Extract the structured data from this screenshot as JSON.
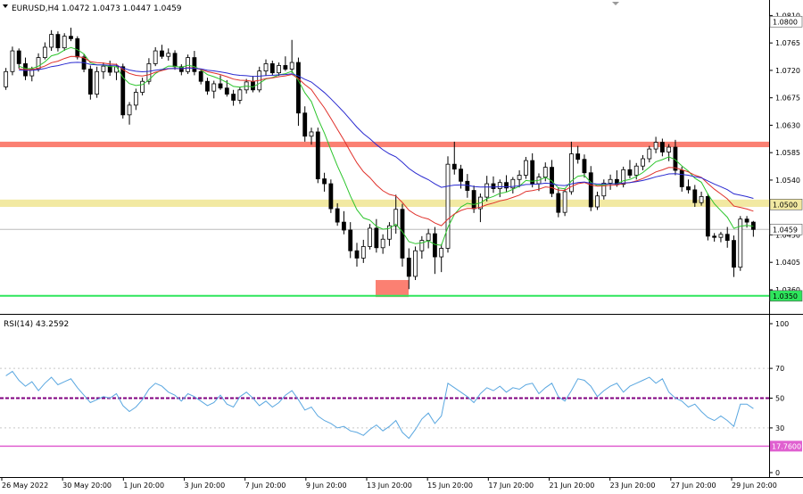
{
  "header": {
    "symbol_line": "EURUSD,H4  1.0472 1.0473 1.0447 1.0459",
    "dropdown_icon": "triangle-down-icon"
  },
  "rsi_header": {
    "label": "RSI(14) 43.2592"
  },
  "colors": {
    "background": "#ffffff",
    "bull_candle": "#ffffff",
    "bear_candle": "#000000",
    "candle_outline": "#000000",
    "resistance_zone": "#fb8072",
    "support_zone": "#f2e9a2",
    "support_line": "#2ee65c",
    "ma_fast": "#2cc52c",
    "ma_mid": "#e0302a",
    "ma_slow": "#2a2ad0",
    "rsi_line": "#5aa7e0",
    "rsi_mid_line": "#800080",
    "rsi_lower_line": "#e060d0",
    "bid_line": "#bbbbbb",
    "axis_text": "#000000",
    "tag_fill": "#ffffff"
  },
  "chart_data": [
    {
      "type": "candlestick",
      "title": "EURUSD,H4",
      "timeframe": "H4",
      "ylim": [
        1.0338,
        1.0815
      ],
      "y_ticks": [
        "1.0810",
        "1.0765",
        "1.0720",
        "1.0675",
        "1.0630",
        "1.0585",
        "1.0540",
        "1.0500",
        "1.0450",
        "1.0405",
        "1.0360"
      ],
      "x_tick_labels": [
        "26 May 2022",
        "30 May 20:00",
        "1 Jun 20:00",
        "3 Jun 20:00",
        "7 Jun 20:00",
        "9 Jun 20:00",
        "13 Jun 20:00",
        "15 Jun 20:00",
        "17 Jun 20:00",
        "21 Jun 20:00",
        "23 Jun 20:00",
        "27 Jun 20:00",
        "29 Jun 20:00"
      ],
      "price_tags": {
        "top": "1.0800",
        "level_1_0500": "1.0500",
        "current": "1.0459",
        "support": "1.0350"
      },
      "zones": [
        {
          "kind": "resistance",
          "from": 1.0594,
          "to": 1.0603
        },
        {
          "kind": "support",
          "from": 1.0496,
          "to": 1.0508
        }
      ],
      "support_line_level": 1.035,
      "current_price": 1.0459,
      "candles": [
        [
          1.0693,
          1.0724,
          1.0688,
          1.0718
        ],
        [
          1.0718,
          1.0759,
          1.0712,
          1.0752
        ],
        [
          1.0752,
          1.0756,
          1.0723,
          1.0731
        ],
        [
          1.0731,
          1.0741,
          1.0704,
          1.0711
        ],
        [
          1.0711,
          1.0726,
          1.0702,
          1.0722
        ],
        [
          1.0722,
          1.0748,
          1.0718,
          1.0741
        ],
        [
          1.0741,
          1.0766,
          1.0738,
          1.0758
        ],
        [
          1.0758,
          1.0786,
          1.0752,
          1.0779
        ],
        [
          1.0779,
          1.0784,
          1.0751,
          1.0757
        ],
        [
          1.0757,
          1.0781,
          1.0752,
          1.0776
        ],
        [
          1.0776,
          1.079,
          1.0768,
          1.0772
        ],
        [
          1.0772,
          1.0776,
          1.0738,
          1.0742
        ],
        [
          1.0742,
          1.0746,
          1.0717,
          1.0722
        ],
        [
          1.0722,
          1.0728,
          1.0672,
          1.0681
        ],
        [
          1.0681,
          1.0726,
          1.0675,
          1.0718
        ],
        [
          1.0718,
          1.0733,
          1.0706,
          1.0727
        ],
        [
          1.0727,
          1.0736,
          1.0711,
          1.0717
        ],
        [
          1.0717,
          1.0731,
          1.0704,
          1.0726
        ],
        [
          1.0726,
          1.0731,
          1.0641,
          1.0647
        ],
        [
          1.0647,
          1.0668,
          1.0631,
          1.0663
        ],
        [
          1.0663,
          1.069,
          1.0655,
          1.0684
        ],
        [
          1.0684,
          1.0708,
          1.0679,
          1.0702
        ],
        [
          1.0702,
          1.074,
          1.0697,
          1.0731
        ],
        [
          1.0731,
          1.0758,
          1.0727,
          1.0752
        ],
        [
          1.0752,
          1.0762,
          1.0739,
          1.0743
        ],
        [
          1.0743,
          1.0756,
          1.0736,
          1.0748
        ],
        [
          1.0748,
          1.0753,
          1.0721,
          1.0726
        ],
        [
          1.0726,
          1.073,
          1.0712,
          1.0718
        ],
        [
          1.0718,
          1.0746,
          1.0714,
          1.0741
        ],
        [
          1.0741,
          1.0752,
          1.0712,
          1.0718
        ],
        [
          1.0718,
          1.0721,
          1.0697,
          1.0702
        ],
        [
          1.0702,
          1.0708,
          1.068,
          1.0686
        ],
        [
          1.0686,
          1.0703,
          1.0674,
          1.0698
        ],
        [
          1.0698,
          1.0712,
          1.0688,
          1.0691
        ],
        [
          1.0691,
          1.0704,
          1.0677,
          1.0681
        ],
        [
          1.0681,
          1.0688,
          1.0662,
          1.0671
        ],
        [
          1.0671,
          1.0693,
          1.0665,
          1.0688
        ],
        [
          1.0688,
          1.0706,
          1.0682,
          1.0701
        ],
        [
          1.0701,
          1.0711,
          1.0684,
          1.0688
        ],
        [
          1.0688,
          1.0726,
          1.0684,
          1.0719
        ],
        [
          1.0719,
          1.0738,
          1.0711,
          1.0731
        ],
        [
          1.0731,
          1.0736,
          1.0712,
          1.0716
        ],
        [
          1.0716,
          1.0733,
          1.0711,
          1.0728
        ],
        [
          1.0728,
          1.0743,
          1.0719,
          1.0722
        ],
        [
          1.0722,
          1.077,
          1.0716,
          1.0733
        ],
        [
          1.0733,
          1.0741,
          1.0629,
          1.065
        ],
        [
          1.065,
          1.0661,
          1.0603,
          1.0612
        ],
        [
          1.0612,
          1.0626,
          1.0598,
          1.0619
        ],
        [
          1.0619,
          1.0626,
          1.0535,
          1.0542
        ],
        [
          1.0542,
          1.0552,
          1.0521,
          1.0534
        ],
        [
          1.0534,
          1.0541,
          1.0486,
          1.0493
        ],
        [
          1.0493,
          1.0502,
          1.0465,
          1.0471
        ],
        [
          1.0471,
          1.0489,
          1.0451,
          1.0458
        ],
        [
          1.0458,
          1.0471,
          1.0412,
          1.0424
        ],
        [
          1.0424,
          1.0437,
          1.0398,
          1.0412
        ],
        [
          1.0412,
          1.0442,
          1.0404,
          1.0431
        ],
        [
          1.0431,
          1.0468,
          1.0426,
          1.0461
        ],
        [
          1.0461,
          1.0476,
          1.0421,
          1.0429
        ],
        [
          1.0429,
          1.0451,
          1.0419,
          1.0443
        ],
        [
          1.0443,
          1.0471,
          1.0432,
          1.0465
        ],
        [
          1.0465,
          1.0516,
          1.0452,
          1.0492
        ],
        [
          1.0492,
          1.0501,
          1.0398,
          1.0412
        ],
        [
          1.0412,
          1.0428,
          1.0361,
          1.0382
        ],
        [
          1.0382,
          1.0431,
          1.0376,
          1.0424
        ],
        [
          1.0424,
          1.0448,
          1.0411,
          1.0441
        ],
        [
          1.0441,
          1.046,
          1.0428,
          1.0452
        ],
        [
          1.0452,
          1.0463,
          1.0386,
          1.0414
        ],
        [
          1.0414,
          1.0435,
          1.0389,
          1.0428
        ],
        [
          1.0428,
          1.0579,
          1.0421,
          1.0566
        ],
        [
          1.0566,
          1.0603,
          1.0549,
          1.0558
        ],
        [
          1.0558,
          1.0565,
          1.0526,
          1.0538
        ],
        [
          1.0538,
          1.055,
          1.0511,
          1.0523
        ],
        [
          1.0523,
          1.0531,
          1.0486,
          1.0493
        ],
        [
          1.0493,
          1.0518,
          1.0471,
          1.0512
        ],
        [
          1.0512,
          1.0547,
          1.0505,
          1.0534
        ],
        [
          1.0534,
          1.0546,
          1.0519,
          1.0526
        ],
        [
          1.0526,
          1.0541,
          1.0512,
          1.0536
        ],
        [
          1.0536,
          1.0548,
          1.0521,
          1.0527
        ],
        [
          1.0527,
          1.0545,
          1.0518,
          1.0541
        ],
        [
          1.0541,
          1.0556,
          1.0528,
          1.0548
        ],
        [
          1.0548,
          1.0578,
          1.0542,
          1.0572
        ],
        [
          1.0572,
          1.0584,
          1.0528,
          1.0534
        ],
        [
          1.0534,
          1.0551,
          1.0522,
          1.0545
        ],
        [
          1.0545,
          1.0569,
          1.0538,
          1.0561
        ],
        [
          1.0561,
          1.0573,
          1.0512,
          1.0518
        ],
        [
          1.0518,
          1.0528,
          1.0479,
          1.0487
        ],
        [
          1.0487,
          1.0526,
          1.0481,
          1.0521
        ],
        [
          1.0521,
          1.0603,
          1.0516,
          1.0583
        ],
        [
          1.0583,
          1.0596,
          1.0567,
          1.0574
        ],
        [
          1.0574,
          1.0582,
          1.0544,
          1.0552
        ],
        [
          1.0552,
          1.0563,
          1.0489,
          1.0496
        ],
        [
          1.0496,
          1.0521,
          1.0491,
          1.0514
        ],
        [
          1.0514,
          1.0541,
          1.0508,
          1.0535
        ],
        [
          1.0535,
          1.0549,
          1.0524,
          1.0541
        ],
        [
          1.0541,
          1.0556,
          1.0529,
          1.0533
        ],
        [
          1.0533,
          1.0562,
          1.0528,
          1.0557
        ],
        [
          1.0557,
          1.0573,
          1.0543,
          1.0548
        ],
        [
          1.0548,
          1.0568,
          1.0541,
          1.0563
        ],
        [
          1.0563,
          1.0581,
          1.0556,
          1.0575
        ],
        [
          1.0575,
          1.0596,
          1.0569,
          1.0591
        ],
        [
          1.0591,
          1.0611,
          1.0584,
          1.0602
        ],
        [
          1.0602,
          1.0608,
          1.0579,
          1.0586
        ],
        [
          1.0586,
          1.0599,
          1.0571,
          1.0594
        ],
        [
          1.0594,
          1.0606,
          1.0548,
          1.0556
        ],
        [
          1.0556,
          1.0562,
          1.0521,
          1.0529
        ],
        [
          1.0529,
          1.0541,
          1.0518,
          1.0524
        ],
        [
          1.0524,
          1.0532,
          1.0496,
          1.0503
        ],
        [
          1.0503,
          1.0521,
          1.0498,
          1.0513
        ],
        [
          1.0513,
          1.0518,
          1.0441,
          1.0448
        ],
        [
          1.0448,
          1.0453,
          1.0439,
          1.0446
        ],
        [
          1.0446,
          1.0455,
          1.0438,
          1.0451
        ],
        [
          1.0451,
          1.0463,
          1.0429,
          1.0441
        ],
        [
          1.0441,
          1.0449,
          1.0381,
          1.0397
        ],
        [
          1.0397,
          1.0481,
          1.0391,
          1.0476
        ],
        [
          1.0476,
          1.0481,
          1.0462,
          1.0471
        ],
        [
          1.0471,
          1.0473,
          1.0447,
          1.0459
        ]
      ],
      "indicators": [
        {
          "name": "ma_fast",
          "color_key": "ma_fast",
          "period": 8
        },
        {
          "name": "ma_mid",
          "color_key": "ma_mid",
          "period": 18
        },
        {
          "name": "ma_slow",
          "color_key": "ma_slow",
          "period": 36
        }
      ]
    },
    {
      "type": "line",
      "title": "RSI(14) 43.2592",
      "ylim": [
        0,
        100
      ],
      "y_ticks": [
        "100",
        "70",
        "50",
        "30",
        "0"
      ],
      "level_lines": [
        70,
        50,
        30
      ],
      "lower_tag": "17.7600",
      "lower_line_level": 17.76,
      "series": [
        {
          "name": "RSI(14)",
          "values": [
            65,
            68,
            62,
            58,
            61,
            55,
            60,
            64,
            59,
            61,
            63,
            57,
            52,
            47,
            49,
            51,
            50,
            53,
            45,
            41,
            44,
            49,
            56,
            60,
            58,
            54,
            52,
            48,
            53,
            51,
            48,
            45,
            47,
            52,
            46,
            44,
            51,
            54,
            50,
            45,
            48,
            44,
            47,
            52,
            55,
            49,
            42,
            44,
            38,
            35,
            33,
            30,
            31,
            28,
            27,
            25,
            29,
            32,
            28,
            31,
            35,
            27,
            23,
            29,
            36,
            40,
            33,
            38,
            60,
            57,
            54,
            51,
            47,
            53,
            57,
            55,
            58,
            54,
            57,
            56,
            59,
            60,
            53,
            57,
            60,
            51,
            48,
            55,
            63,
            62,
            58,
            51,
            55,
            58,
            60,
            54,
            58,
            60,
            62,
            64,
            60,
            63,
            54,
            50,
            48,
            44,
            46,
            41,
            37,
            35,
            38,
            35,
            31,
            46,
            46,
            43
          ]
        }
      ]
    }
  ]
}
